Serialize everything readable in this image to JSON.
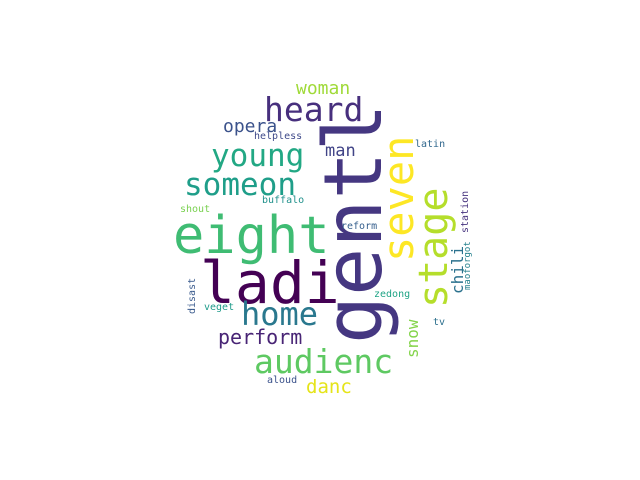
{
  "wordcloud": {
    "words": [
      {
        "text": "gentl",
        "color": "#453781"
      },
      {
        "text": "eight",
        "color": "#3fbc73"
      },
      {
        "text": "ladi",
        "color": "#440154"
      },
      {
        "text": "seven",
        "color": "#fde725"
      },
      {
        "text": "stage",
        "color": "#b5de2b"
      },
      {
        "text": "heard",
        "color": "#472f7d"
      },
      {
        "text": "young",
        "color": "#22a884"
      },
      {
        "text": "someon",
        "color": "#1f9e89"
      },
      {
        "text": "home",
        "color": "#2a788e"
      },
      {
        "text": "audienc",
        "color": "#5ec962"
      },
      {
        "text": "perform",
        "color": "#482475"
      },
      {
        "text": "opera",
        "color": "#3b528b"
      },
      {
        "text": "woman",
        "color": "#a0da39"
      },
      {
        "text": "man",
        "color": "#414487"
      },
      {
        "text": "danc",
        "color": "#e5e419"
      },
      {
        "text": "snow",
        "color": "#84d44b"
      },
      {
        "text": "chili",
        "color": "#2c728e"
      },
      {
        "text": "station",
        "color": "#46327e"
      },
      {
        "text": "maoforgot",
        "color": "#26828e"
      },
      {
        "text": "latin",
        "color": "#31688e"
      },
      {
        "text": "helpless",
        "color": "#3e4989"
      },
      {
        "text": "shout",
        "color": "#7ad151"
      },
      {
        "text": "buffalo",
        "color": "#21918c"
      },
      {
        "text": "reform",
        "color": "#355f8d"
      },
      {
        "text": "zedong",
        "color": "#20a486"
      },
      {
        "text": "disast",
        "color": "#38598c"
      },
      {
        "text": "veget",
        "color": "#1e9b8a"
      },
      {
        "text": "tv",
        "color": "#2d708e"
      },
      {
        "text": "aloud",
        "color": "#3b528b"
      }
    ]
  }
}
